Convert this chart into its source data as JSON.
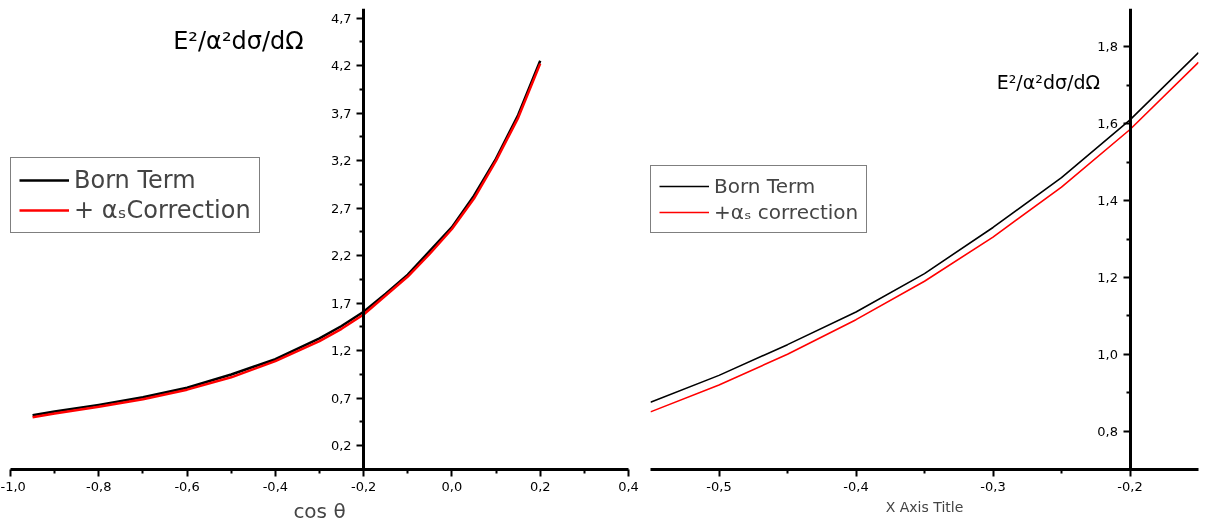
{
  "chart_data": [
    {
      "type": "line",
      "ylabel": "E²/α²dσ/dΩ",
      "xlabel": "cos θ",
      "legend": "top left",
      "grid": false,
      "marker": "none",
      "line_style": "solid",
      "xlim": [
        -1.0,
        0.4
      ],
      "ylim": [
        -0.05,
        4.8
      ],
      "xticks": [
        {
          "value": -1.0,
          "label": "-1,0"
        },
        {
          "value": -0.8,
          "label": "-0,8"
        },
        {
          "value": -0.6,
          "label": "-0,6"
        },
        {
          "value": -0.4,
          "label": "-0,4"
        },
        {
          "value": -0.2,
          "label": "-0,2"
        },
        {
          "value": 0.0,
          "label": "0,0"
        },
        {
          "value": 0.2,
          "label": "0,2"
        },
        {
          "value": 0.4,
          "label": "0,4"
        }
      ],
      "yticks": [
        {
          "value": 0.2,
          "label": "0,2"
        },
        {
          "value": 0.7,
          "label": "0,7"
        },
        {
          "value": 1.2,
          "label": "1,2"
        },
        {
          "value": 1.7,
          "label": "1,7"
        },
        {
          "value": 2.2,
          "label": "2,2"
        },
        {
          "value": 2.7,
          "label": "2,7"
        },
        {
          "value": 3.2,
          "label": "3,2"
        },
        {
          "value": 3.7,
          "label": "3,7"
        },
        {
          "value": 4.2,
          "label": "4,2"
        },
        {
          "value": 4.7,
          "label": "4,7"
        }
      ],
      "x": [
        -0.95,
        -0.9,
        -0.8,
        -0.7,
        -0.6,
        -0.5,
        -0.4,
        -0.3,
        -0.25,
        -0.2,
        -0.15,
        -0.1,
        -0.05,
        0.0,
        0.05,
        0.1,
        0.15,
        0.2
      ],
      "series": [
        {
          "name": "Born Term",
          "color": "#000000",
          "values": [
            0.52,
            0.56,
            0.63,
            0.71,
            0.81,
            0.95,
            1.11,
            1.33,
            1.46,
            1.61,
            1.8,
            2.0,
            2.25,
            2.5,
            2.83,
            3.22,
            3.68,
            4.25
          ]
        },
        {
          "name": "+ αₛCorrection",
          "color": "#ff0000",
          "values": [
            0.5,
            0.54,
            0.61,
            0.69,
            0.79,
            0.92,
            1.09,
            1.3,
            1.43,
            1.58,
            1.78,
            1.98,
            2.22,
            2.48,
            2.8,
            3.2,
            3.65,
            4.22
          ]
        }
      ]
    },
    {
      "type": "line",
      "ylabel": "E²/α²dσ/dΩ",
      "xlabel": "X Axis Title",
      "legend": "top left",
      "grid": false,
      "marker": "none",
      "line_style": "solid",
      "xlim": [
        -0.55,
        -0.15
      ],
      "ylim": [
        0.7,
        1.9
      ],
      "xticks": [
        {
          "value": -0.5,
          "label": "-0,5"
        },
        {
          "value": -0.4,
          "label": "-0,4"
        },
        {
          "value": -0.3,
          "label": "-0,3"
        },
        {
          "value": -0.2,
          "label": "-0,2"
        }
      ],
      "yticks": [
        {
          "value": 0.8,
          "label": "0,8"
        },
        {
          "value": 1.0,
          "label": "1,0"
        },
        {
          "value": 1.2,
          "label": "1,2"
        },
        {
          "value": 1.4,
          "label": "1,4"
        },
        {
          "value": 1.6,
          "label": "1,6"
        },
        {
          "value": 1.8,
          "label": "1,8"
        }
      ],
      "x": [
        -0.55,
        -0.5,
        -0.45,
        -0.4,
        -0.35,
        -0.3,
        -0.25,
        -0.2,
        -0.15
      ],
      "series": [
        {
          "name": "Born Term",
          "color": "#000000",
          "values": [
            0.875,
            0.945,
            1.025,
            1.11,
            1.21,
            1.33,
            1.46,
            1.61,
            1.785
          ]
        },
        {
          "name": "+αₛ correction",
          "color": "#ff0000",
          "values": [
            0.85,
            0.92,
            1.0,
            1.09,
            1.19,
            1.305,
            1.435,
            1.585,
            1.76
          ]
        }
      ]
    }
  ]
}
